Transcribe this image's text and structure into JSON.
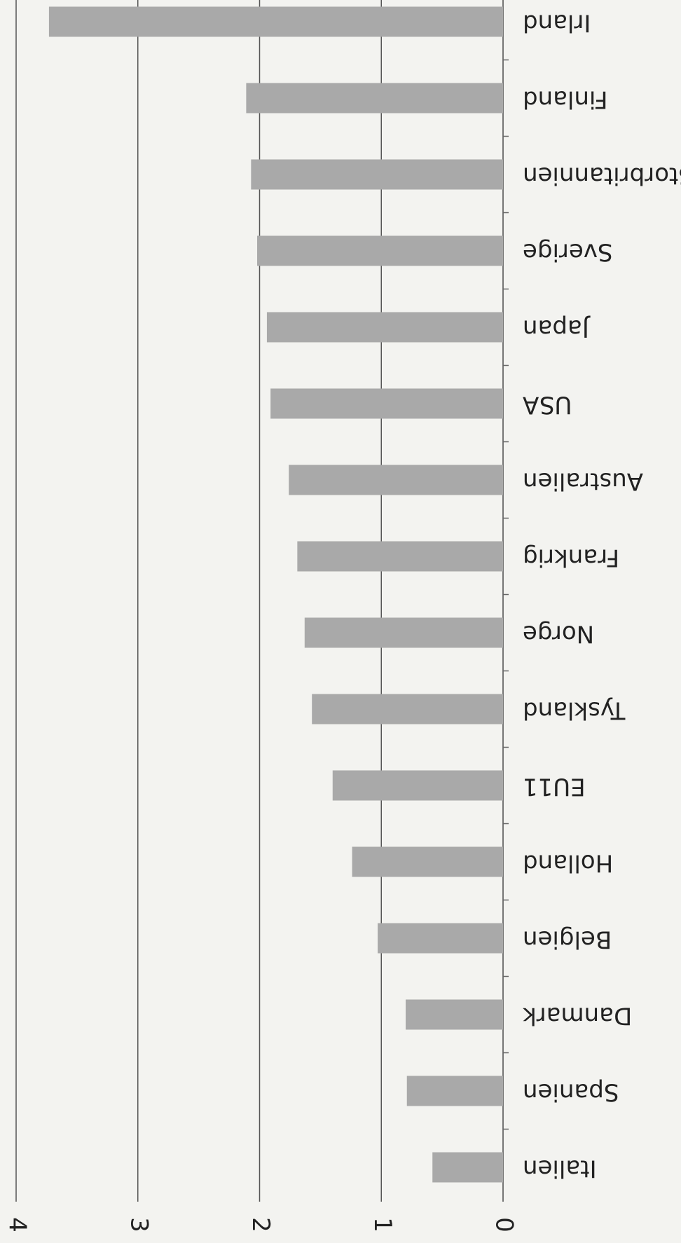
{
  "chart_data": {
    "type": "bar",
    "orientation": "horizontal",
    "categories": [
      "Irland",
      "Finland",
      "Storbritannien",
      "Sverige",
      "Japan",
      "USA",
      "Australien",
      "Frankrig",
      "Norge",
      "Tyskland",
      "EU11",
      "Holland",
      "Belgien",
      "Danmark",
      "Spanien",
      "Italien"
    ],
    "values": [
      3.73,
      2.11,
      2.07,
      2.02,
      1.94,
      1.91,
      1.76,
      1.69,
      1.63,
      1.57,
      1.4,
      1.24,
      1.03,
      0.8,
      0.79,
      0.58
    ],
    "color": "#a9a9a9",
    "xlim": [
      0,
      4
    ],
    "xticks": [
      0,
      1,
      2,
      3,
      4
    ],
    "grid": true
  }
}
